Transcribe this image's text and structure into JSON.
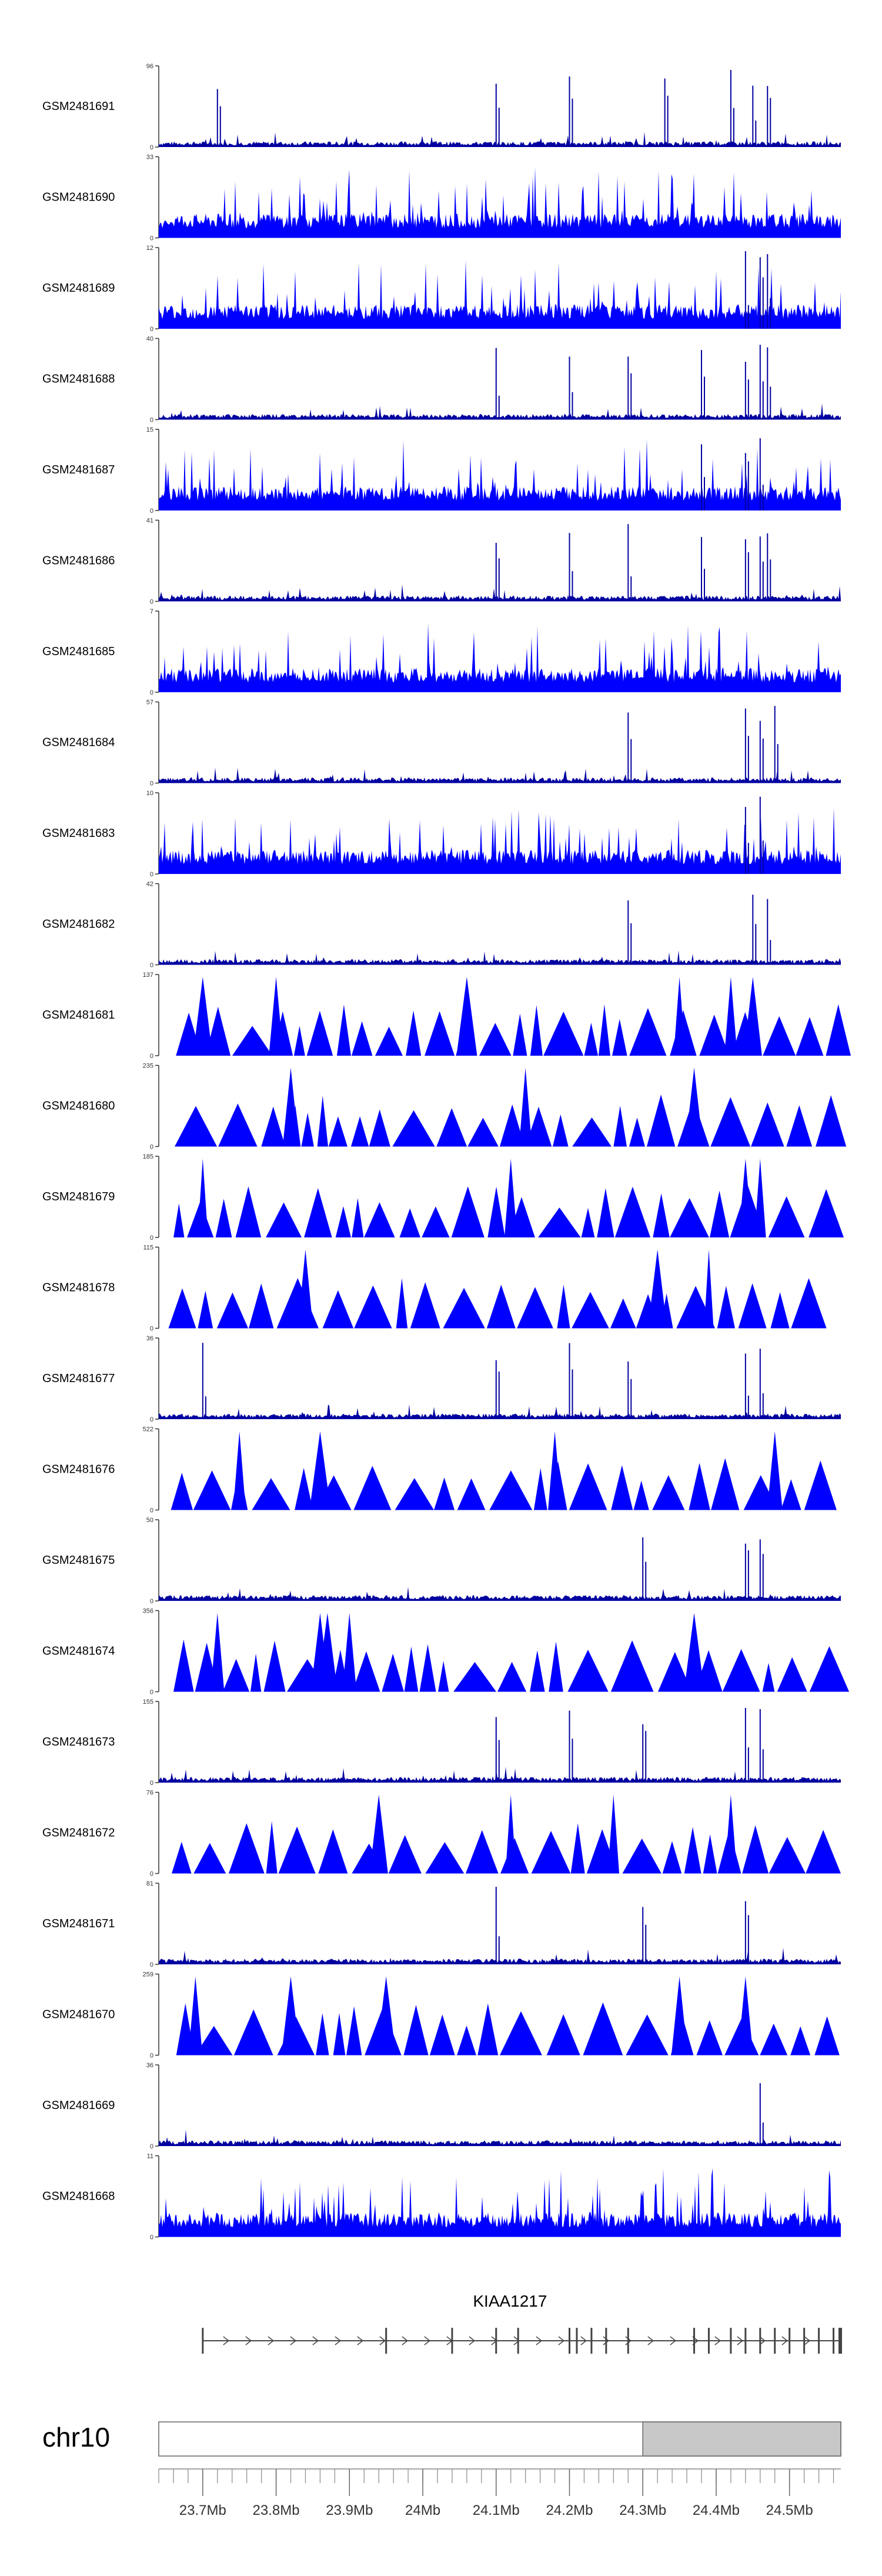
{
  "chart_data": {
    "type": "area",
    "title": "",
    "xlabel": "",
    "ylabel": "",
    "xlim": [
      23640000,
      24570000
    ],
    "grid": false,
    "legend": "none",
    "colors": {
      "signal": "#0000ff",
      "signal_dark": "#0000a0",
      "axis": "#333333",
      "gene": "#444444",
      "ideogram": "#c8c8c8"
    },
    "tracks": [
      {
        "name": "GSM2481691",
        "ymax": "96",
        "ymin": "0",
        "style": "dense",
        "peak_x": [
          23720000,
          24100000,
          24200000,
          24330000,
          24420000,
          24450000,
          24470000
        ]
      },
      {
        "name": "GSM2481690",
        "ymax": "33",
        "ymin": "0",
        "style": "noisy",
        "peak_x": []
      },
      {
        "name": "GSM2481689",
        "ymax": "12",
        "ymin": "0",
        "style": "noisy",
        "peak_x": [
          24440000,
          24460000,
          24470000
        ]
      },
      {
        "name": "GSM2481688",
        "ymax": "40",
        "ymin": "0",
        "style": "dense",
        "peak_x": [
          24100000,
          24200000,
          24280000,
          24380000,
          24440000,
          24460000,
          24470000
        ]
      },
      {
        "name": "GSM2481687",
        "ymax": "15",
        "ymin": "0",
        "style": "noisy",
        "peak_x": [
          24380000,
          24440000,
          24460000
        ]
      },
      {
        "name": "GSM2481686",
        "ymax": "41",
        "ymin": "0",
        "style": "dense",
        "peak_x": [
          24100000,
          24200000,
          24280000,
          24380000,
          24440000,
          24460000,
          24470000
        ]
      },
      {
        "name": "GSM2481685",
        "ymax": "7",
        "ymin": "0",
        "style": "noisy",
        "peak_x": []
      },
      {
        "name": "GSM2481684",
        "ymax": "57",
        "ymin": "0",
        "style": "dense",
        "peak_x": [
          24280000,
          24440000,
          24460000,
          24480000
        ]
      },
      {
        "name": "GSM2481683",
        "ymax": "10",
        "ymin": "0",
        "style": "noisy",
        "peak_x": [
          24440000,
          24460000
        ]
      },
      {
        "name": "GSM2481682",
        "ymax": "42",
        "ymin": "0",
        "style": "dense",
        "peak_x": [
          24280000,
          24450000,
          24470000
        ]
      },
      {
        "name": "GSM2481681",
        "ymax": "137",
        "ymin": "0",
        "style": "triangles",
        "peak_x": [
          23700000,
          23800000,
          24060000,
          24350000,
          24420000,
          24450000
        ]
      },
      {
        "name": "GSM2481680",
        "ymax": "235",
        "ymin": "0",
        "style": "triangles",
        "peak_x": [
          23820000,
          24140000,
          24370000
        ]
      },
      {
        "name": "GSM2481679",
        "ymax": "185",
        "ymin": "0",
        "style": "triangles",
        "peak_x": [
          23700000,
          24120000,
          24440000,
          24460000
        ]
      },
      {
        "name": "GSM2481678",
        "ymax": "115",
        "ymin": "0",
        "style": "triangles",
        "peak_x": [
          23840000,
          24320000,
          24390000
        ]
      },
      {
        "name": "GSM2481677",
        "ymax": "36",
        "ymin": "0",
        "style": "dense",
        "peak_x": [
          23700000,
          24100000,
          24200000,
          24280000,
          24440000,
          24460000
        ]
      },
      {
        "name": "GSM2481676",
        "ymax": "522",
        "ymin": "0",
        "style": "triangles",
        "peak_x": [
          23750000,
          23860000,
          24180000,
          24480000
        ]
      },
      {
        "name": "GSM2481675",
        "ymax": "50",
        "ymin": "0",
        "style": "dense",
        "peak_x": [
          24300000,
          24440000,
          24460000
        ]
      },
      {
        "name": "GSM2481674",
        "ymax": "356",
        "ymin": "0",
        "style": "triangles",
        "peak_x": [
          23720000,
          23860000,
          23870000,
          23900000,
          24370000
        ]
      },
      {
        "name": "GSM2481673",
        "ymax": "155",
        "ymin": "0",
        "style": "dense",
        "peak_x": [
          24100000,
          24200000,
          24300000,
          24440000,
          24460000
        ]
      },
      {
        "name": "GSM2481672",
        "ymax": "76",
        "ymin": "0",
        "style": "triangles",
        "peak_x": [
          23940000,
          24120000,
          24260000,
          24420000
        ]
      },
      {
        "name": "GSM2481671",
        "ymax": "81",
        "ymin": "0",
        "style": "dense",
        "peak_x": [
          24100000,
          24300000,
          24440000
        ]
      },
      {
        "name": "GSM2481670",
        "ymax": "259",
        "ymin": "0",
        "style": "triangles",
        "peak_x": [
          23690000,
          23820000,
          23950000,
          24350000,
          24440000
        ]
      },
      {
        "name": "GSM2481669",
        "ymax": "36",
        "ymin": "0",
        "style": "dense",
        "peak_x": [
          24460000
        ]
      },
      {
        "name": "GSM2481668",
        "ymax": "11",
        "ymin": "0",
        "style": "noisy",
        "peak_x": []
      }
    ],
    "gene": {
      "name": "KIAA1217",
      "start": 23700000,
      "end": 24570000,
      "strand": "+",
      "exons": [
        23700000,
        23950000,
        24040000,
        24100000,
        24130000,
        24200000,
        24210000,
        24230000,
        24250000,
        24280000,
        24370000,
        24390000,
        24420000,
        24440000,
        24460000,
        24480000,
        24500000,
        24520000,
        24540000,
        24560000,
        24570000
      ]
    },
    "chromosome": {
      "name": "chr10",
      "highlight": [
        24300000,
        24570000
      ],
      "tick_labels": [
        "23.7Mb",
        "23.8Mb",
        "23.9Mb",
        "24Mb",
        "24.1Mb",
        "24.2Mb",
        "24.3Mb",
        "24.4Mb",
        "24.5Mb"
      ],
      "tick_values": [
        23700000,
        23800000,
        23900000,
        24000000,
        24100000,
        24200000,
        24300000,
        24400000,
        24500000
      ],
      "minor_step": 20000
    }
  }
}
